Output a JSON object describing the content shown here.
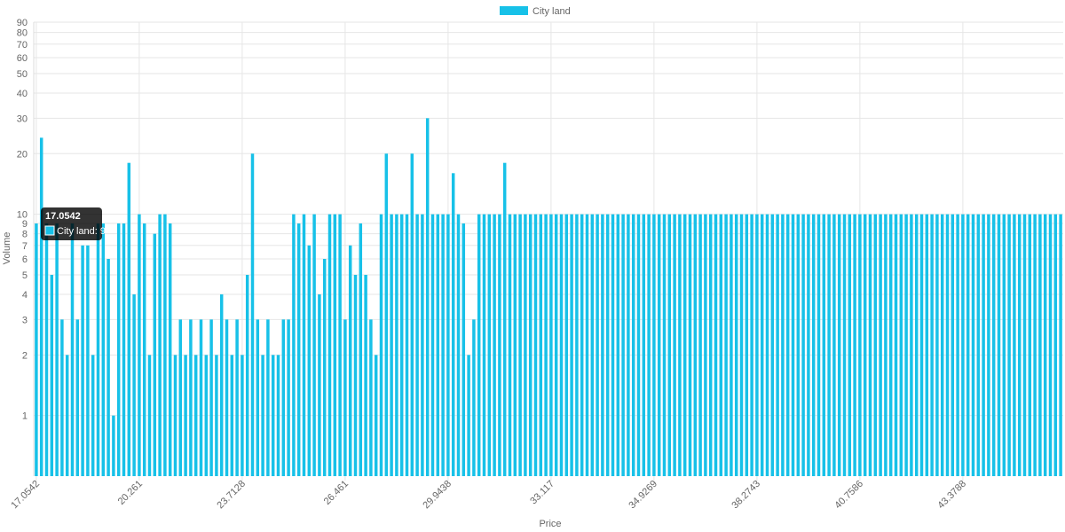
{
  "chart_data": {
    "type": "bar",
    "title": "",
    "xlabel": "Price",
    "ylabel": "Volume",
    "y_scale": "log",
    "ylim": [
      0.5,
      90
    ],
    "y_ticks": [
      1,
      2,
      3,
      4,
      5,
      6,
      7,
      8,
      9,
      10,
      20,
      30,
      40,
      50,
      60,
      70,
      80,
      90
    ],
    "x_tick_labels": [
      "17.0542",
      "20.261",
      "23.7128",
      "26.461",
      "29.9438",
      "33.117",
      "34.9269",
      "38.2743",
      "40.7586",
      "43.3788"
    ],
    "x_tick_positions": [
      0,
      20,
      40,
      60,
      80,
      100,
      120,
      140,
      160,
      180
    ],
    "grid": true,
    "legend_position": "top",
    "series": [
      {
        "name": "City land",
        "color": "#17c1e8",
        "values": [
          9,
          24,
          9,
          5,
          9,
          3,
          2,
          9,
          3,
          7,
          7,
          2,
          9,
          9,
          6,
          1,
          9,
          9,
          18,
          4,
          10,
          9,
          2,
          8,
          10,
          10,
          9,
          2,
          3,
          2,
          3,
          2,
          3,
          2,
          3,
          2,
          4,
          3,
          2,
          3,
          2,
          5,
          20,
          3,
          2,
          3,
          2,
          2,
          3,
          3,
          10,
          9,
          10,
          7,
          10,
          4,
          6,
          10,
          10,
          10,
          3,
          7,
          5,
          9,
          5,
          3,
          2,
          10,
          20,
          10,
          10,
          10,
          10,
          20,
          10,
          10,
          30,
          10,
          10,
          10,
          10,
          16,
          10,
          9,
          2,
          3,
          10,
          10,
          10,
          10,
          10,
          18,
          10,
          10,
          10,
          10,
          10,
          10,
          10,
          10,
          10,
          10,
          10,
          10,
          10,
          10,
          10,
          10,
          10,
          10,
          10,
          10,
          10,
          10,
          10,
          10,
          10,
          10,
          10,
          10,
          10,
          10,
          10,
          10,
          10,
          10,
          10,
          10,
          10,
          10,
          10,
          10,
          10,
          10,
          10,
          10,
          10,
          10,
          10,
          10,
          10,
          10,
          10,
          10,
          10,
          10,
          10,
          10,
          10,
          10,
          10,
          10,
          10,
          10,
          10,
          10,
          10,
          10,
          10,
          10,
          10,
          10,
          10,
          10,
          10,
          10,
          10,
          10,
          10,
          10,
          10,
          10,
          10,
          10,
          10,
          10,
          10,
          10,
          10,
          10,
          10,
          10,
          10,
          10,
          10,
          10,
          10,
          10,
          10,
          10,
          10,
          10,
          10,
          10,
          10,
          10,
          10,
          10,
          10,
          10
        ]
      }
    ],
    "tooltip": {
      "title": "17.0542",
      "label": "City land: 9"
    }
  }
}
